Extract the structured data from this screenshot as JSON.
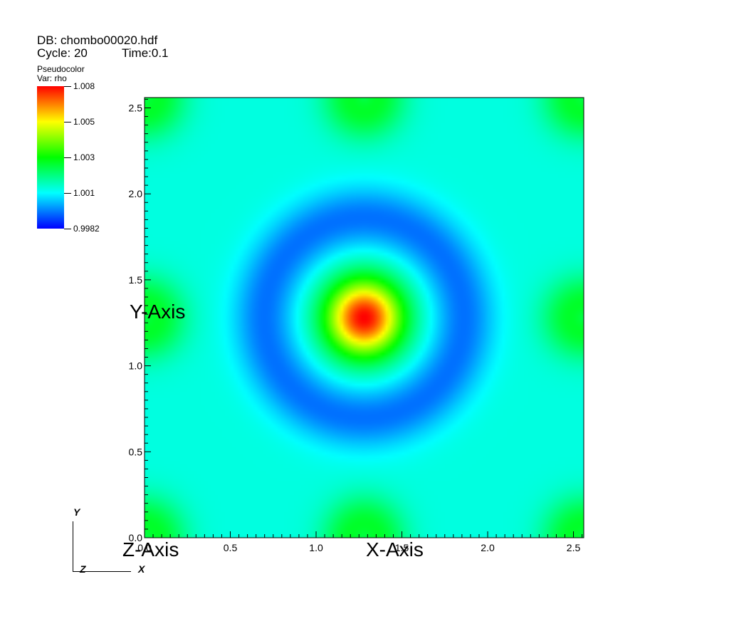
{
  "header": {
    "db_line": "DB: chombo00020.hdf",
    "cycle_line": "Cycle: 20",
    "time_line": "Time:0.1"
  },
  "legend": {
    "title": "Pseudocolor",
    "var": "Var: rho",
    "max": "1.008",
    "min": "0.9982",
    "ticks": [
      "1.008",
      "1.005",
      "1.003",
      "1.001",
      "0.9982"
    ],
    "colors": [
      "#0000ff",
      "#00ffff",
      "#00ff00",
      "#ffff00",
      "#ff0000"
    ]
  },
  "axes": {
    "xlabel": "X-Axis",
    "ylabel": "Y-Axis",
    "zlabel": "Z-Axis",
    "x_ticks": [
      "0.0",
      "0.5",
      "1.0",
      "1.5",
      "2.0",
      "2.5"
    ],
    "y_ticks": [
      "0.0",
      "0.5",
      "1.0",
      "1.5",
      "2.0",
      "2.5"
    ]
  },
  "triad": {
    "y": "Y",
    "x": "X",
    "z": "Z"
  },
  "chart_data": {
    "type": "heatmap",
    "title": "",
    "variable": "rho",
    "xlabel": "X-Axis",
    "ylabel": "Y-Axis",
    "xlim": [
      0.0,
      2.56
    ],
    "ylim": [
      0.0,
      2.56
    ],
    "x_ticks": [
      0.0,
      0.5,
      1.0,
      1.5,
      2.0,
      2.5
    ],
    "y_ticks": [
      0.0,
      0.5,
      1.0,
      1.5,
      2.0,
      2.5
    ],
    "value_range": [
      0.9982,
      1.008
    ],
    "peak": {
      "x": 1.28,
      "y": 1.28,
      "value": 1.008
    },
    "colormap": [
      "#0000ff",
      "#00ffff",
      "#00ff00",
      "#ffff00",
      "#ff0000"
    ]
  }
}
